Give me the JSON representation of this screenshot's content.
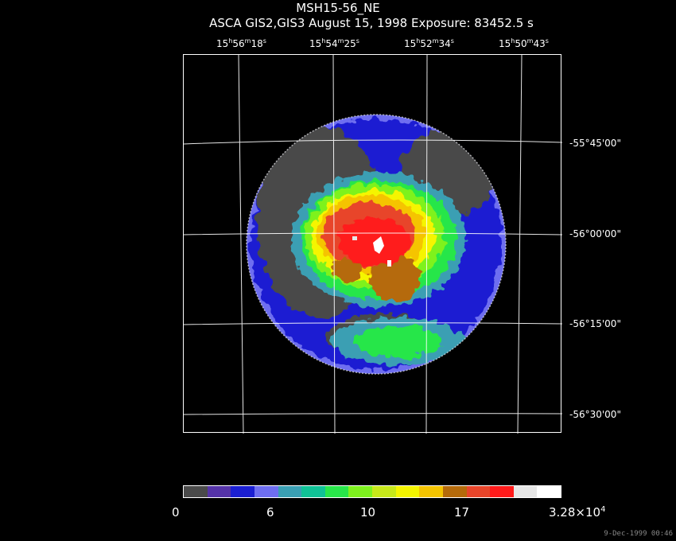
{
  "title": "MSH15-56_NE",
  "subtitle": "ASCA GIS2,GIS3 August 15, 1998 Exposure: 83452.5 s",
  "ra_labels": [
    {
      "h": "15",
      "m": "56",
      "s": "18"
    },
    {
      "h": "15",
      "m": "54",
      "s": "25"
    },
    {
      "h": "15",
      "m": "52",
      "s": "34"
    },
    {
      "h": "15",
      "m": "50",
      "s": "43"
    }
  ],
  "dec_labels": [
    "-55°45'00\"",
    "-56°00'00\"",
    "-56°15'00\"",
    "-56°30'00\""
  ],
  "colorbar": {
    "colors": [
      "#4a4a4a",
      "#5533a8",
      "#1b1fd2",
      "#6e6ef0",
      "#3a9fb3",
      "#10c296",
      "#28e64a",
      "#7ef21e",
      "#c7e81a",
      "#f5f500",
      "#f5c400",
      "#b56a0a",
      "#e8452a",
      "#ff1a1a",
      "#e6e6e6",
      "#ffffff"
    ],
    "labels": [
      "0",
      "6",
      "10",
      "17",
      "3.28×10"
    ],
    "label_exp": "4"
  },
  "footer": "9-Dec-1999 00:46"
}
